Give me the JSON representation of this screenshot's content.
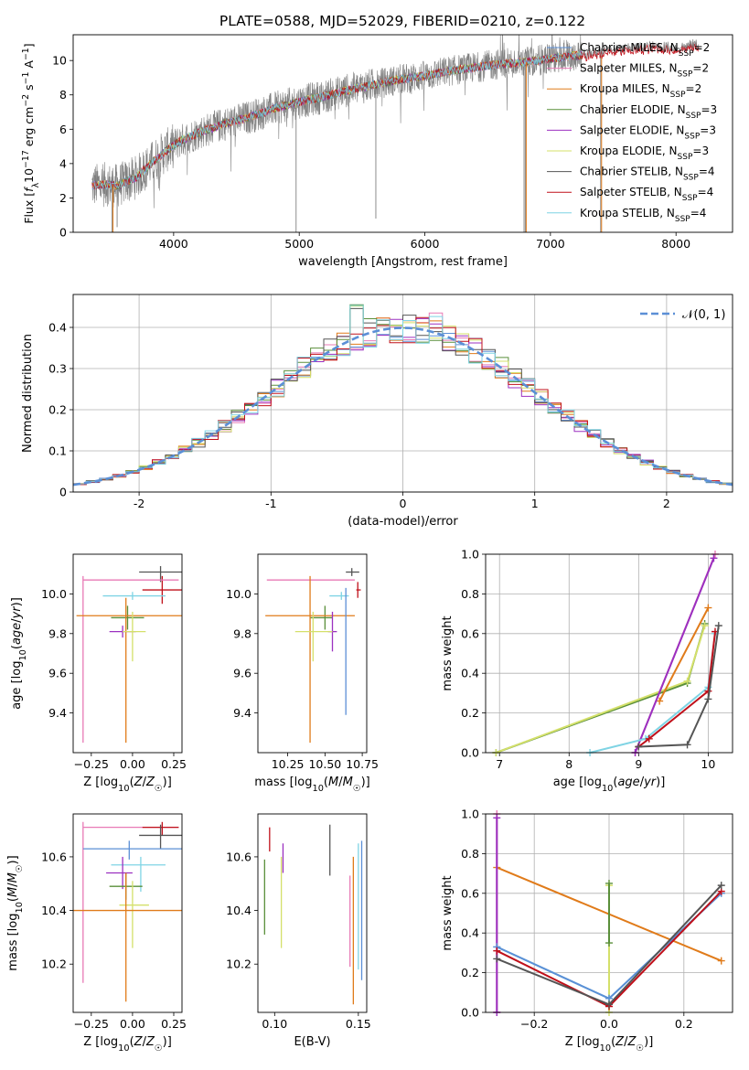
{
  "page": {
    "title": "PLATE=0588, MJD=52029, FIBERID=0210, z=0.122"
  },
  "chart_data": [
    {
      "id": "spectrum",
      "type": "line",
      "title": "PLATE=0588, MJD=52029, FIBERID=0210, z=0.122",
      "xlabel": "wavelength [Angstrom, rest frame]",
      "ylabel": "Flux [f_λ10^-17 erg cm^-2 s^-1 A^-1]",
      "xlim": [
        3200,
        8450
      ],
      "ylim": [
        0,
        11.5
      ],
      "xticks": [
        4000,
        5000,
        6000,
        7000,
        8000
      ],
      "yticks": [
        0,
        2,
        4,
        6,
        8,
        10
      ],
      "observed_color": "#808080",
      "model_envelope": {
        "x": [
          3350,
          3450,
          3550,
          3700,
          3850,
          3950,
          4050,
          4200,
          4400,
          4600,
          4800,
          5000,
          5200,
          5400,
          5600,
          5800,
          6000,
          6200,
          6400,
          6600,
          6800,
          7000,
          7200
        ],
        "y": [
          2.7,
          2.8,
          2.7,
          3.2,
          4.2,
          4.8,
          5.3,
          5.8,
          6.3,
          6.7,
          7.2,
          7.6,
          7.9,
          8.3,
          8.6,
          8.9,
          9.1,
          9.4,
          9.6,
          9.8,
          9.9,
          10.1,
          10.3
        ]
      },
      "red_tail": {
        "x": [
          7250,
          7400,
          7550,
          7700,
          7850,
          8000,
          8150
        ],
        "y": [
          10.2,
          10.4,
          10.5,
          10.6,
          10.7,
          10.6,
          10.8
        ]
      },
      "legend": [
        {
          "label": "Chabrier MILES, N",
          "sub": "SSP",
          "suffix": "=2",
          "color": "#5b8fd6"
        },
        {
          "label": "Salpeter MILES, N",
          "sub": "SSP",
          "suffix": "=2",
          "color": "#e87ab6"
        },
        {
          "label": "Kroupa MILES, N",
          "sub": "SSP",
          "suffix": "=2",
          "color": "#e07b1a"
        },
        {
          "label": "Chabrier ELODIE, N",
          "sub": "SSP",
          "suffix": "=3",
          "color": "#5a8f3a"
        },
        {
          "label": "Salpeter ELODIE, N",
          "sub": "SSP",
          "suffix": "=3",
          "color": "#9b30c0"
        },
        {
          "label": "Kroupa ELODIE, N",
          "sub": "SSP",
          "suffix": "=3",
          "color": "#d4e06a"
        },
        {
          "label": "Chabrier STELIB, N",
          "sub": "SSP",
          "suffix": "=4",
          "color": "#555555"
        },
        {
          "label": "Salpeter STELIB, N",
          "sub": "SSP",
          "suffix": "=4",
          "color": "#c0101a"
        },
        {
          "label": "Kroupa STELIB, N",
          "sub": "SSP",
          "suffix": "=4",
          "color": "#7fd4e4"
        }
      ]
    },
    {
      "id": "residuals",
      "type": "bar",
      "xlabel": "(data-model)/error",
      "ylabel": "Normed distribution",
      "xlim": [
        -2.5,
        2.5
      ],
      "ylim": [
        0,
        0.48
      ],
      "xticks": [
        -2,
        -1,
        0,
        1,
        2
      ],
      "yticks": [
        0.0,
        0.1,
        0.2,
        0.3,
        0.4
      ],
      "grid": true,
      "bins": {
        "start": -2.5,
        "width": 0.1,
        "count": 50
      },
      "gaussian": {
        "label": "𝒩(0, 1)",
        "color": "#5b8fd6"
      },
      "histogram_colors": [
        "#5b8fd6",
        "#e87ab6",
        "#e07b1a",
        "#5a8f3a",
        "#9b30c0",
        "#d4e06a",
        "#555555",
        "#c0101a",
        "#7fd4e4"
      ],
      "spike_bins": {
        "-0.35": 0.46,
        "-0.05": 0.43,
        "0.15": 0.43,
        "0.25": 0.435
      }
    },
    {
      "id": "age_vs_Z",
      "type": "scatter",
      "xlabel": "Z [log10(Z/Z☉)]",
      "ylabel": "age  [log10(age/yr)]",
      "xlim": [
        -0.36,
        0.3
      ],
      "ylim": [
        9.2,
        10.2
      ],
      "xticks": [
        -0.25,
        0.0,
        0.25
      ],
      "xticklabels": [
        "−0.25",
        "0.00",
        "0.25"
      ],
      "yticks": [
        9.4,
        9.6,
        9.8,
        10.0
      ],
      "yticklabels": [
        "9.4",
        "9.6",
        "9.8",
        "10.0"
      ],
      "points": [
        {
          "color": "#555555",
          "x": 0.17,
          "xerr": [
            0.13,
            0.13
          ],
          "y": 10.11,
          "yerr": [
            0.05,
            0.03
          ]
        },
        {
          "color": "#c0101a",
          "x": 0.18,
          "xerr": [
            0.12,
            0.12
          ],
          "y": 10.02,
          "yerr": [
            0.07,
            0.07
          ]
        },
        {
          "color": "#e87ab6",
          "x": -0.3,
          "xerr": [
            0.0,
            0.58
          ],
          "y": 10.07,
          "yerr": [
            0.82,
            0.02
          ]
        },
        {
          "color": "#7fd4e4",
          "x": 0.0,
          "xerr": [
            0.18,
            0.2
          ],
          "y": 9.99,
          "yerr": [
            0.02,
            0.02
          ]
        },
        {
          "color": "#5a8f3a",
          "x": -0.03,
          "xerr": [
            0.1,
            0.1
          ],
          "y": 9.88,
          "yerr": [
            0.06,
            0.06
          ]
        },
        {
          "color": "#e07b1a",
          "x": -0.04,
          "xerr": [
            0.3,
            0.36
          ],
          "y": 9.89,
          "yerr": [
            0.64,
            0.09
          ]
        },
        {
          "color": "#9b30c0",
          "x": -0.06,
          "xerr": [
            0.08,
            0.08
          ],
          "y": 9.81,
          "yerr": [
            0.03,
            0.03
          ]
        },
        {
          "color": "#d4e06a",
          "x": 0.0,
          "xerr": [
            0.06,
            0.08
          ],
          "y": 9.81,
          "yerr": [
            0.15,
            0.1
          ]
        }
      ]
    },
    {
      "id": "age_vs_mass",
      "type": "scatter",
      "xlabel": "mass [log10(M/M☉)]",
      "xlim": [
        10.05,
        10.78
      ],
      "ylim": [
        9.2,
        10.2
      ],
      "xticks": [
        10.25,
        10.5,
        10.75
      ],
      "xticklabels": [
        "10.25",
        "10.50",
        "10.75"
      ],
      "yticks": [
        9.4,
        9.6,
        9.8,
        10.0
      ],
      "yticklabels": [
        "9.4",
        "9.6",
        "9.8",
        "10.0"
      ],
      "points": [
        {
          "color": "#555555",
          "x": 10.68,
          "xerr": [
            0.04,
            0.05
          ],
          "y": 10.11,
          "yerr": [
            0.02,
            0.02
          ]
        },
        {
          "color": "#c0101a",
          "x": 10.72,
          "xerr": [
            0.01,
            0.02
          ],
          "y": 10.02,
          "yerr": [
            0.04,
            0.04
          ]
        },
        {
          "color": "#e87ab6",
          "x": 10.44,
          "xerr": [
            0.33,
            0.26
          ],
          "y": 10.07,
          "yerr": [
            0.0,
            0.0
          ]
        },
        {
          "color": "#7fd4e4",
          "x": 10.61,
          "xerr": [
            0.08,
            0.05
          ],
          "y": 9.99,
          "yerr": [
            0.02,
            0.02
          ]
        },
        {
          "color": "#5a8f3a",
          "x": 10.5,
          "xerr": [
            0.1,
            0.05
          ],
          "y": 9.88,
          "yerr": [
            0.06,
            0.06
          ]
        },
        {
          "color": "#e07b1a",
          "x": 10.4,
          "xerr": [
            0.3,
            0.3
          ],
          "y": 9.89,
          "yerr": [
            0.64,
            0.2
          ]
        },
        {
          "color": "#9b30c0",
          "x": 10.55,
          "xerr": [
            0.03,
            0.03
          ],
          "y": 9.81,
          "yerr": [
            0.1,
            0.1
          ]
        },
        {
          "color": "#d4e06a",
          "x": 10.42,
          "xerr": [
            0.12,
            0.13
          ],
          "y": 9.81,
          "yerr": [
            0.15,
            0.1
          ]
        },
        {
          "color": "#5b8fd6",
          "x": 10.64,
          "xerr": [
            0.0,
            0.0
          ],
          "y": 9.85,
          "yerr": [
            0.46,
            0.18
          ]
        }
      ]
    },
    {
      "id": "weight_vs_age",
      "type": "line",
      "xlabel": "age  [log10(age/yr)]",
      "ylabel": "mass weight",
      "xlim": [
        6.8,
        10.35
      ],
      "ylim": [
        0,
        1
      ],
      "xticks": [
        7,
        8,
        9,
        10
      ],
      "yticks": [
        0.0,
        0.2,
        0.4,
        0.6,
        0.8,
        1.0
      ],
      "yticklabels": [
        "0.0",
        "0.2",
        "0.4",
        "0.6",
        "0.8",
        "1.0"
      ],
      "grid": true,
      "series": [
        {
          "color": "#5a8f3a",
          "x": [
            6.95,
            9.7,
            9.95
          ],
          "y": [
            0.0,
            0.35,
            0.65
          ]
        },
        {
          "color": "#d4e06a",
          "x": [
            6.95,
            9.7,
            9.95
          ],
          "y": [
            0.0,
            0.36,
            0.64
          ]
        },
        {
          "color": "#e07b1a",
          "x": [
            9.3,
            10.0
          ],
          "y": [
            0.26,
            0.73
          ]
        },
        {
          "color": "#e87ab6",
          "x": [
            8.95,
            10.1
          ],
          "y": [
            0.0,
            1.0
          ]
        },
        {
          "color": "#9b30c0",
          "x": [
            8.95,
            10.08
          ],
          "y": [
            0.0,
            0.98
          ]
        },
        {
          "color": "#7fd4e4",
          "x": [
            8.3,
            9.1,
            10.0,
            10.1
          ],
          "y": [
            0.0,
            0.07,
            0.33,
            0.6
          ]
        },
        {
          "color": "#c0101a",
          "x": [
            9.0,
            9.15,
            10.0,
            10.1
          ],
          "y": [
            0.03,
            0.07,
            0.31,
            0.61
          ]
        },
        {
          "color": "#555555",
          "x": [
            9.0,
            9.7,
            10.0,
            10.15
          ],
          "y": [
            0.03,
            0.04,
            0.27,
            0.64
          ]
        }
      ]
    },
    {
      "id": "mass_vs_Z",
      "type": "scatter",
      "xlabel": "Z [log10(Z/Z☉)]",
      "ylabel": "mass [log10(M/M☉)]",
      "xlim": [
        -0.36,
        0.3
      ],
      "ylim": [
        10.02,
        10.76
      ],
      "xticks": [
        -0.25,
        0.0,
        0.25
      ],
      "xticklabels": [
        "−0.25",
        "0.00",
        "0.25"
      ],
      "yticks": [
        10.2,
        10.4,
        10.6
      ],
      "yticklabels": [
        "10.2",
        "10.4",
        "10.6"
      ],
      "points": [
        {
          "color": "#e87ab6",
          "x": -0.3,
          "xerr": [
            0.0,
            0.58
          ],
          "y": 10.71,
          "yerr": [
            0.58,
            0.02
          ]
        },
        {
          "color": "#c0101a",
          "x": 0.18,
          "xerr": [
            0.12,
            0.1
          ],
          "y": 10.71,
          "yerr": [
            0.03,
            0.02
          ]
        },
        {
          "color": "#555555",
          "x": 0.17,
          "xerr": [
            0.13,
            0.13
          ],
          "y": 10.68,
          "yerr": [
            0.05,
            0.04
          ]
        },
        {
          "color": "#5b8fd6",
          "x": -0.02,
          "xerr": [
            0.28,
            0.32
          ],
          "y": 10.63,
          "yerr": [
            0.04,
            0.03
          ]
        },
        {
          "color": "#7fd4e4",
          "x": 0.05,
          "xerr": [
            0.18,
            0.15
          ],
          "y": 10.57,
          "yerr": [
            0.1,
            0.03
          ]
        },
        {
          "color": "#9b30c0",
          "x": -0.06,
          "xerr": [
            0.1,
            0.06
          ],
          "y": 10.54,
          "yerr": [
            0.06,
            0.06
          ]
        },
        {
          "color": "#5a8f3a",
          "x": -0.04,
          "xerr": [
            0.1,
            0.1
          ],
          "y": 10.49,
          "yerr": [
            0.05,
            0.05
          ]
        },
        {
          "color": "#d4e06a",
          "x": 0.0,
          "xerr": [
            0.08,
            0.1
          ],
          "y": 10.42,
          "yerr": [
            0.16,
            0.09
          ]
        },
        {
          "color": "#e07b1a",
          "x": -0.04,
          "xerr": [
            0.32,
            0.36
          ],
          "y": 10.4,
          "yerr": [
            0.34,
            0.14
          ]
        }
      ]
    },
    {
      "id": "mass_vs_EBV",
      "type": "scatter",
      "xlabel": "E(B-V)",
      "xlim": [
        0.09,
        0.155
      ],
      "ylim": [
        10.02,
        10.76
      ],
      "xticks": [
        0.1,
        0.15
      ],
      "xticklabels": [
        "0.10",
        "0.15"
      ],
      "yticks": [
        10.2,
        10.4,
        10.6
      ],
      "yticklabels": [
        "10.2",
        "10.4",
        "10.6"
      ],
      "points": [
        {
          "color": "#c0101a",
          "x": 0.097,
          "yerr": [
            0.06,
            0.03
          ],
          "y": 10.68
        },
        {
          "color": "#5a8f3a",
          "x": 0.094,
          "yerr": [
            0.19,
            0.09
          ],
          "y": 10.5
        },
        {
          "color": "#9b30c0",
          "x": 0.105,
          "yerr": [
            0.06,
            0.05
          ],
          "y": 10.6
        },
        {
          "color": "#d4e06a",
          "x": 0.104,
          "yerr": [
            0.24,
            0.1
          ],
          "y": 10.5
        },
        {
          "color": "#555555",
          "x": 0.133,
          "yerr": [
            0.09,
            0.1
          ],
          "y": 10.62
        },
        {
          "color": "#e87ab6",
          "x": 0.145,
          "yerr": [
            0.26,
            0.08
          ],
          "y": 10.45
        },
        {
          "color": "#e07b1a",
          "x": 0.147,
          "yerr": [
            0.4,
            0.15
          ],
          "y": 10.45
        },
        {
          "color": "#7fd4e4",
          "x": 0.15,
          "yerr": [
            0.32,
            0.15
          ],
          "y": 10.5
        },
        {
          "color": "#5b8fd6",
          "x": 0.152,
          "yerr": [
            0.36,
            0.16
          ],
          "y": 10.5
        }
      ]
    },
    {
      "id": "weight_vs_Z",
      "type": "line",
      "xlabel": "Z [log10(Z/Z☉)]",
      "ylabel": "mass weight",
      "xlim": [
        -0.33,
        0.33
      ],
      "ylim": [
        0,
        1
      ],
      "xticks": [
        -0.2,
        0.0,
        0.2
      ],
      "xticklabels": [
        "−0.2",
        "0.0",
        "0.2"
      ],
      "yticks": [
        0.0,
        0.2,
        0.4,
        0.6,
        0.8,
        1.0
      ],
      "yticklabels": [
        "0.0",
        "0.2",
        "0.4",
        "0.6",
        "0.8",
        "1.0"
      ],
      "grid": true,
      "series": [
        {
          "color": "#e07b1a",
          "x": [
            -0.3,
            0.3
          ],
          "y": [
            0.73,
            0.26
          ]
        },
        {
          "color": "#e87ab6",
          "x": [
            -0.3,
            -0.3
          ],
          "y": [
            0.0,
            1.0
          ]
        },
        {
          "color": "#9b30c0",
          "x": [
            -0.3,
            -0.3
          ],
          "y": [
            0.0,
            0.98
          ]
        },
        {
          "color": "#d4e06a",
          "x": [
            0.0,
            0.0
          ],
          "y": [
            0.0,
            0.64
          ]
        },
        {
          "color": "#5a8f3a",
          "x": [
            0.0,
            0.0
          ],
          "y": [
            0.35,
            0.65
          ]
        },
        {
          "color": "#7fd4e4",
          "x": [
            -0.3,
            0.0,
            0.3
          ],
          "y": [
            0.33,
            0.07,
            0.6
          ]
        },
        {
          "color": "#5b8fd6",
          "x": [
            -0.3,
            0.0,
            0.3
          ],
          "y": [
            0.33,
            0.07,
            0.6
          ]
        },
        {
          "color": "#c0101a",
          "x": [
            -0.3,
            0.0,
            0.3
          ],
          "y": [
            0.31,
            0.03,
            0.61
          ]
        },
        {
          "color": "#555555",
          "x": [
            -0.3,
            0.0,
            0.3
          ],
          "y": [
            0.27,
            0.04,
            0.64
          ]
        }
      ]
    }
  ]
}
